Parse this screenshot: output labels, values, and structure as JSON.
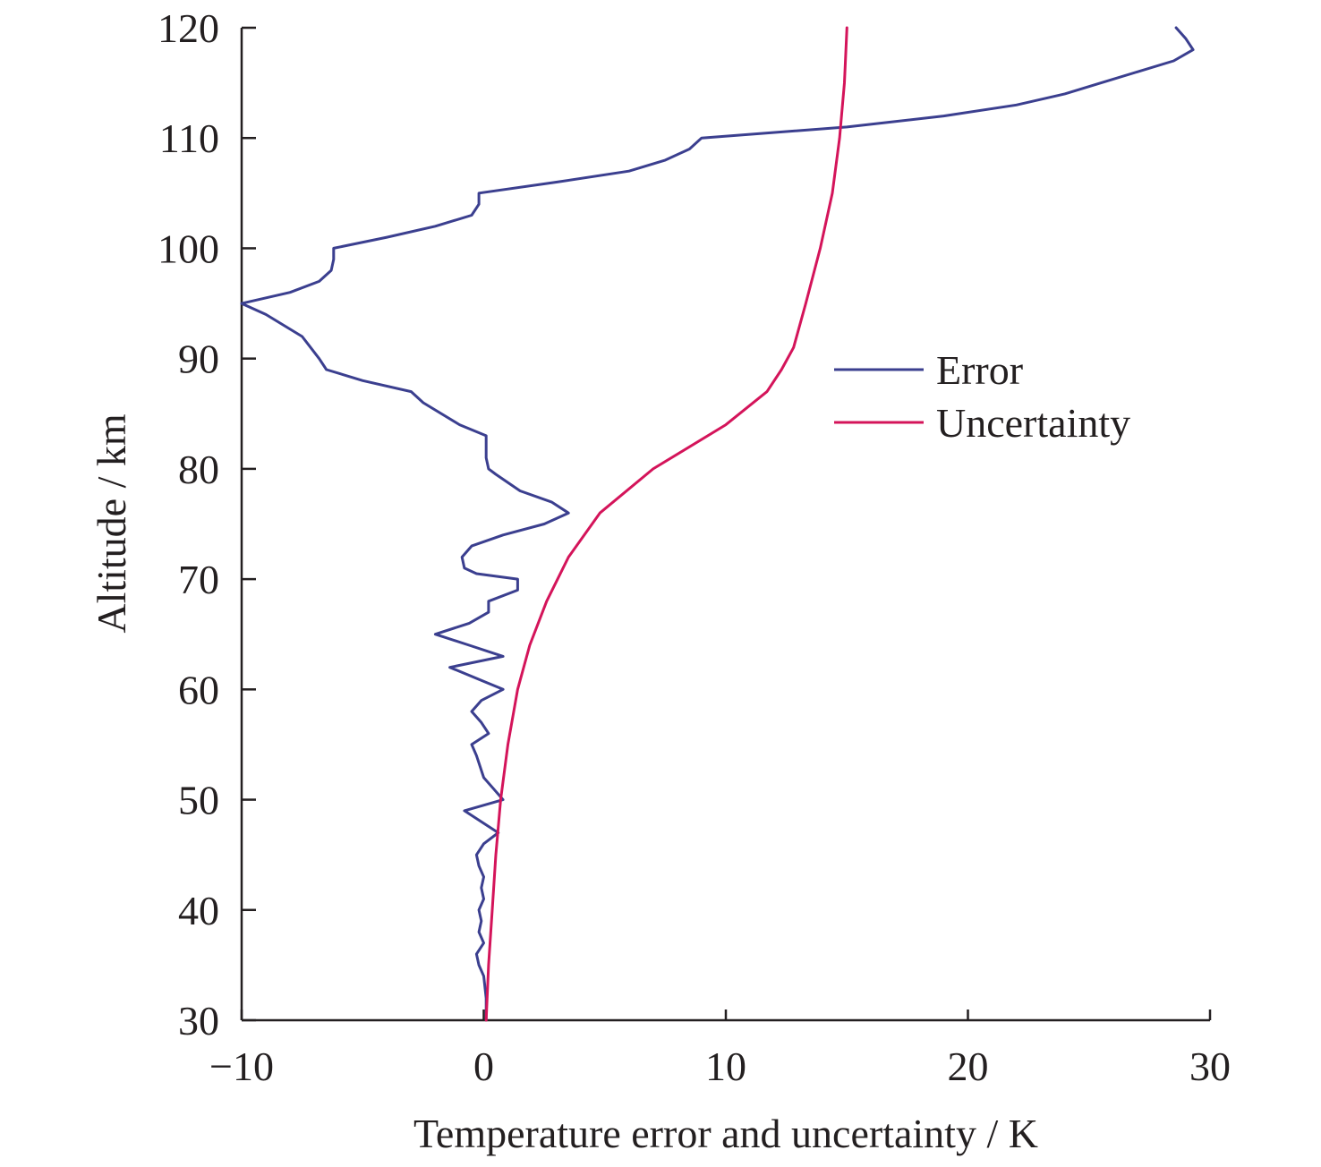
{
  "chart_data": {
    "type": "line",
    "xlabel": "Temperature error and uncertainty / K",
    "ylabel": "Altitude / km",
    "xlim": [
      -10,
      30
    ],
    "ylim": [
      30,
      120
    ],
    "x_ticks": [
      -10,
      0,
      10,
      20,
      30
    ],
    "x_tick_labels": [
      "−10",
      "0",
      "10",
      "20",
      "30"
    ],
    "y_ticks": [
      30,
      40,
      50,
      60,
      70,
      80,
      90,
      100,
      110,
      120
    ],
    "y_tick_labels": [
      "30",
      "40",
      "50",
      "60",
      "70",
      "80",
      "90",
      "100",
      "110",
      "120"
    ],
    "grid": false,
    "legend_position": "right-middle",
    "series": [
      {
        "name": "Error",
        "color": "#3b3f8f",
        "points": [
          [
            0.1,
            30
          ],
          [
            0.1,
            32
          ],
          [
            0.0,
            34
          ],
          [
            -0.2,
            35
          ],
          [
            -0.3,
            36
          ],
          [
            0.0,
            37
          ],
          [
            -0.2,
            38
          ],
          [
            -0.1,
            39
          ],
          [
            -0.2,
            40
          ],
          [
            0.0,
            41
          ],
          [
            -0.1,
            42
          ],
          [
            0.0,
            43
          ],
          [
            -0.2,
            44
          ],
          [
            -0.3,
            45
          ],
          [
            0.0,
            46
          ],
          [
            0.6,
            47
          ],
          [
            -0.8,
            49
          ],
          [
            0.8,
            50
          ],
          [
            0.4,
            51
          ],
          [
            0.0,
            52
          ],
          [
            -0.3,
            54
          ],
          [
            -0.5,
            55
          ],
          [
            0.2,
            56
          ],
          [
            -0.1,
            57
          ],
          [
            -0.5,
            58
          ],
          [
            -0.1,
            59
          ],
          [
            0.8,
            60
          ],
          [
            -1.4,
            62
          ],
          [
            0.8,
            63
          ],
          [
            -0.6,
            64
          ],
          [
            -2.0,
            65
          ],
          [
            -0.6,
            66
          ],
          [
            0.2,
            67
          ],
          [
            0.2,
            68
          ],
          [
            1.4,
            69
          ],
          [
            1.4,
            70
          ],
          [
            -0.3,
            70.5
          ],
          [
            -0.8,
            71
          ],
          [
            -0.9,
            72
          ],
          [
            -0.5,
            73
          ],
          [
            0.8,
            74
          ],
          [
            2.5,
            75
          ],
          [
            3.5,
            76
          ],
          [
            2.8,
            77
          ],
          [
            1.5,
            78
          ],
          [
            0.5,
            79.5
          ],
          [
            0.2,
            80
          ],
          [
            0.1,
            81
          ],
          [
            0.1,
            83
          ],
          [
            -1.0,
            84
          ],
          [
            -2.5,
            86
          ],
          [
            -3.0,
            87
          ],
          [
            -5.0,
            88
          ],
          [
            -6.5,
            89
          ],
          [
            -6.8,
            90
          ],
          [
            -7.5,
            92
          ],
          [
            -9.0,
            94
          ],
          [
            -10.0,
            95
          ],
          [
            -8.0,
            96
          ],
          [
            -6.8,
            97
          ],
          [
            -6.3,
            98
          ],
          [
            -6.2,
            99
          ],
          [
            -6.2,
            100
          ],
          [
            -4.0,
            101
          ],
          [
            -2.0,
            102
          ],
          [
            -0.5,
            103
          ],
          [
            -0.2,
            104
          ],
          [
            -0.2,
            105
          ],
          [
            3.0,
            106
          ],
          [
            6.0,
            107
          ],
          [
            7.5,
            108
          ],
          [
            8.5,
            109
          ],
          [
            9.0,
            110
          ],
          [
            15.0,
            111
          ],
          [
            19.0,
            112
          ],
          [
            22.0,
            113
          ],
          [
            24.0,
            114
          ],
          [
            25.5,
            115
          ],
          [
            27.0,
            116
          ],
          [
            28.5,
            117
          ],
          [
            29.3,
            118
          ],
          [
            29.0,
            119
          ],
          [
            28.6,
            120
          ]
        ]
      },
      {
        "name": "Uncertainty",
        "color": "#d4145a",
        "points": [
          [
            0.1,
            30
          ],
          [
            0.2,
            35
          ],
          [
            0.35,
            40
          ],
          [
            0.5,
            45
          ],
          [
            0.7,
            50
          ],
          [
            1.0,
            55
          ],
          [
            1.4,
            60
          ],
          [
            1.9,
            64
          ],
          [
            2.6,
            68
          ],
          [
            3.5,
            72
          ],
          [
            4.8,
            76
          ],
          [
            7.0,
            80
          ],
          [
            10.0,
            84
          ],
          [
            11.7,
            87
          ],
          [
            12.3,
            89
          ],
          [
            12.8,
            91
          ],
          [
            13.3,
            95
          ],
          [
            13.9,
            100
          ],
          [
            14.4,
            105
          ],
          [
            14.7,
            110
          ],
          [
            14.9,
            115
          ],
          [
            15.0,
            120
          ]
        ]
      }
    ]
  }
}
